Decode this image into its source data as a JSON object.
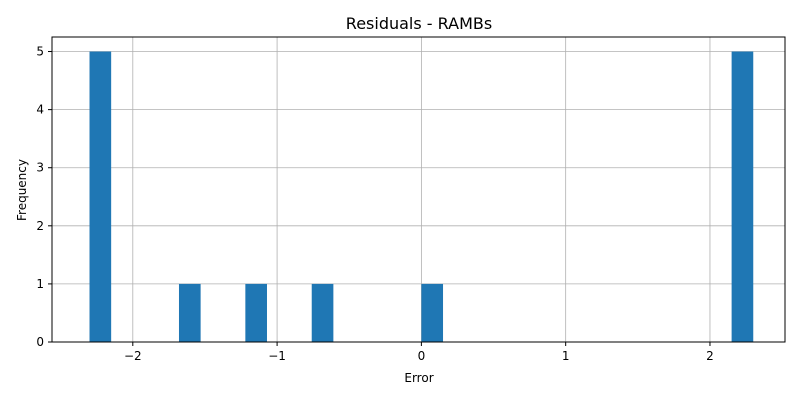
{
  "chart_data": {
    "type": "bar",
    "title": "Residuals - RAMBs",
    "xlabel": "Error",
    "ylabel": "Frequency",
    "xlim": [
      -2.56,
      2.52
    ],
    "ylim": [
      0,
      5.25
    ],
    "x_ticks": [
      -2,
      -1,
      0,
      1,
      2
    ],
    "x_tick_labels": [
      "−2",
      "−1",
      "0",
      "1",
      "2"
    ],
    "y_ticks": [
      0,
      1,
      2,
      3,
      4,
      5
    ],
    "y_tick_labels": [
      "0",
      "1",
      "2",
      "3",
      "4",
      "5"
    ],
    "grid": true,
    "bar_color": "#1f77b4",
    "bins": [
      {
        "x0": -2.3,
        "x1": -2.15,
        "count": 5
      },
      {
        "x0": -1.68,
        "x1": -1.53,
        "count": 1
      },
      {
        "x0": -1.22,
        "x1": -1.07,
        "count": 1
      },
      {
        "x0": -0.76,
        "x1": -0.61,
        "count": 1
      },
      {
        "x0": 0.0,
        "x1": 0.15,
        "count": 1
      },
      {
        "x0": 2.15,
        "x1": 2.3,
        "count": 5
      }
    ]
  }
}
